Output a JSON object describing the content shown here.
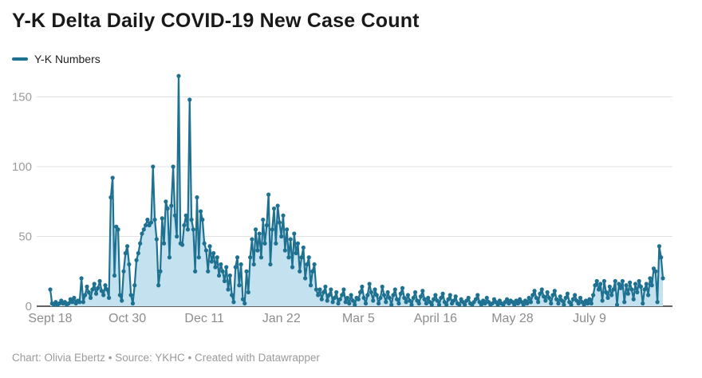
{
  "header": {
    "title": "Y-K Delta Daily COVID-19 New Case Count"
  },
  "legend": {
    "series_label": "Y-K Numbers"
  },
  "footer": {
    "credit": "Chart: Olivia Ebertz • Source: YKHC • Created with Datawrapper"
  },
  "colors": {
    "line": "#1e7191",
    "area_fill": "#c3e1ef",
    "gridline": "#e2e2e2",
    "baseline": "#2e2e2e",
    "y_tick_text": "#9c9c9c",
    "x_tick_text": "#8d8d8d",
    "title_text": "#191919",
    "footer_text": "#9b9b9b"
  },
  "chart_data": {
    "type": "line",
    "title": "Y-K Delta Daily COVID-19 New Case Count",
    "xlabel": "",
    "ylabel": "",
    "grid": "horizontal",
    "legend_position": "top-left",
    "markers": true,
    "area_fill": true,
    "ylim": [
      0,
      170
    ],
    "y_ticks": [
      0,
      50,
      100,
      150
    ],
    "x_ticks": [
      {
        "label": "Sept 18",
        "index": 0
      },
      {
        "label": "Oct 30",
        "index": 42
      },
      {
        "label": "Dec 11",
        "index": 84
      },
      {
        "label": "Jan 22",
        "index": 126
      },
      {
        "label": "Mar 5",
        "index": 168
      },
      {
        "label": "April 16",
        "index": 210
      },
      {
        "label": "May 28",
        "index": 252
      },
      {
        "label": "July 9",
        "index": 294
      }
    ],
    "series": [
      {
        "name": "Y-K Numbers",
        "values": [
          12,
          2,
          1,
          3,
          1,
          2,
          4,
          2,
          3,
          1,
          2,
          5,
          3,
          6,
          2,
          4,
          3,
          20,
          3,
          8,
          14,
          10,
          6,
          12,
          16,
          9,
          13,
          18,
          11,
          8,
          15,
          12,
          6,
          78,
          92,
          22,
          57,
          55,
          8,
          4,
          25,
          38,
          43,
          30,
          8,
          2,
          15,
          33,
          38,
          45,
          52,
          55,
          58,
          62,
          58,
          60,
          100,
          62,
          48,
          15,
          25,
          63,
          45,
          75,
          70,
          35,
          72,
          100,
          65,
          50,
          165,
          45,
          44,
          58,
          65,
          55,
          148,
          62,
          55,
          25,
          78,
          35,
          68,
          62,
          45,
          40,
          25,
          43,
          32,
          38,
          28,
          35,
          22,
          30,
          25,
          18,
          28,
          12,
          22,
          8,
          3,
          28,
          35,
          15,
          30,
          5,
          2,
          25,
          10,
          35,
          48,
          30,
          55,
          40,
          52,
          35,
          62,
          45,
          58,
          80,
          30,
          55,
          70,
          45,
          72,
          60,
          50,
          65,
          40,
          55,
          35,
          48,
          28,
          52,
          38,
          45,
          25,
          35,
          42,
          20,
          30,
          35,
          15,
          25,
          30,
          12,
          8,
          12,
          5,
          10,
          14,
          4,
          8,
          12,
          3,
          6,
          10,
          2,
          5,
          8,
          12,
          3,
          6,
          2,
          8,
          4,
          1,
          6,
          5,
          10,
          14,
          6,
          2,
          8,
          16,
          10,
          4,
          12,
          8,
          2,
          6,
          14,
          8,
          3,
          10,
          6,
          1,
          8,
          12,
          5,
          2,
          9,
          13,
          6,
          3,
          8,
          4,
          1,
          6,
          10,
          4,
          2,
          7,
          11,
          5,
          2,
          6,
          3,
          1,
          5,
          8,
          4,
          1,
          6,
          9,
          3,
          1,
          5,
          8,
          2,
          4,
          7,
          2,
          1,
          5,
          3,
          1,
          4,
          6,
          2,
          1,
          3,
          5,
          8,
          3,
          1,
          4,
          2,
          6,
          3,
          1,
          2,
          5,
          3,
          1,
          4,
          2,
          1,
          3,
          5,
          2,
          4,
          3,
          1,
          4,
          2,
          5,
          3,
          1,
          4,
          2,
          6,
          3,
          8,
          11,
          6,
          3,
          9,
          12,
          7,
          4,
          10,
          6,
          2,
          8,
          11,
          5,
          2,
          7,
          4,
          1,
          6,
          9,
          3,
          1,
          5,
          8,
          4,
          2,
          6,
          3,
          1,
          4,
          2,
          5,
          2,
          8,
          15,
          18,
          12,
          16,
          4,
          18,
          10,
          6,
          14,
          8,
          12,
          18,
          1,
          16,
          13,
          18,
          3,
          15,
          9,
          17,
          12,
          5,
          16,
          10,
          18,
          14,
          2,
          12,
          16,
          8,
          20,
          15,
          27,
          25,
          3,
          43,
          35,
          20
        ]
      }
    ]
  }
}
